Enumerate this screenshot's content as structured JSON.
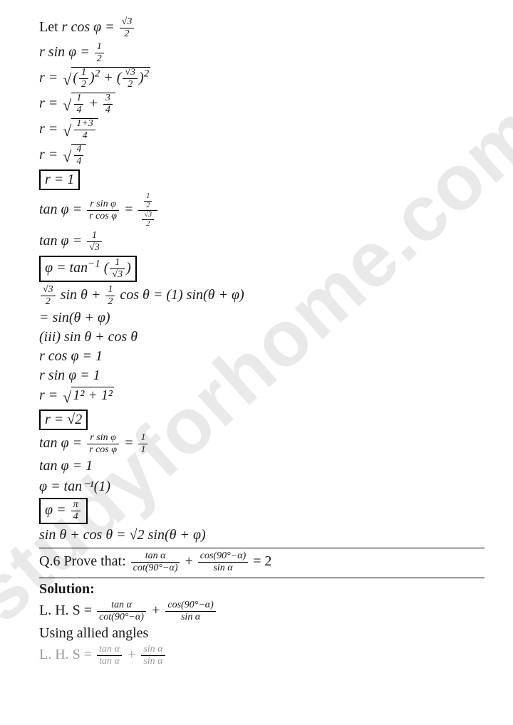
{
  "watermark": "studyforhome.com",
  "lines": {
    "l1_a": "Let ",
    "l1_b": "r cos φ = ",
    "l1_frac_n": "√3",
    "l1_frac_d": "2",
    "l2": "r sin φ = ",
    "l2_frac_n": "1",
    "l2_frac_d": "2",
    "l3": "r = ",
    "l3_f1n": "1",
    "l3_f1d": "2",
    "l3_f2n": "√3",
    "l3_f2d": "2",
    "l4": "r = ",
    "l4_f1n": "1",
    "l4_f1d": "4",
    "l4_plus": " + ",
    "l4_f2n": "3",
    "l4_f2d": "4",
    "l5": "r = ",
    "l5_fn": "1+3",
    "l5_fd": "4",
    "l6": "r = ",
    "l6_fn": "4",
    "l6_fd": "4",
    "l7_box": "r = 1",
    "l8": "tan φ = ",
    "l8_f1n": "r sin φ",
    "l8_f1d": "r cos φ",
    "l8_eq": " = ",
    "l8_f2nn": "1",
    "l8_f2nd": "2",
    "l8_f2dn": "√3",
    "l8_f2dd": "2",
    "l9": "tan φ = ",
    "l9_fn": "1",
    "l9_fd": "√3",
    "l10_box_a": "φ = tan",
    "l10_sup": "−1",
    "l10_fn": "1",
    "l10_fd": "√3",
    "l11_f1n": "√3",
    "l11_f1d": "2",
    "l11_a": " sin θ + ",
    "l11_f2n": "1",
    "l11_f2d": "2",
    "l11_b": " cos θ = (1) sin(θ + φ)",
    "l12": "= sin(θ + φ)",
    "l13": "(iii) sin θ + cos θ",
    "l14": "r cos φ = 1",
    "l15": "r sin φ = 1",
    "l16_a": "r = ",
    "l16_rad": "1² + 1²",
    "l17_box": "r = √2",
    "l18": "tan φ = ",
    "l18_f1n": "r sin φ",
    "l18_f1d": "r cos φ",
    "l18_eq": " = ",
    "l18_f2n": "1",
    "l18_f2d": "1",
    "l19": "tan φ = 1",
    "l20": "φ = tan⁻¹(1)",
    "l21_box_a": "φ = ",
    "l21_fn": "π",
    "l21_fd": "4",
    "l22": "sin θ + cos θ = √2 sin(θ + φ)",
    "q6_a": "Q.6 Prove that: ",
    "q6_f1n": "tan α",
    "q6_f1d": "cot(90°−α)",
    "q6_plus": " + ",
    "q6_f2n": "cos(90°−α)",
    "q6_f2d": "sin α",
    "q6_eq": " = 2",
    "sol": "Solution:",
    "lhs_a": "L. H. S = ",
    "lhs_f1n": "tan α",
    "lhs_f1d": "cot(90°−α)",
    "lhs_plus": " + ",
    "lhs_f2n": "cos(90°−α)",
    "lhs_f2d": "sin α",
    "allied": "Using allied angles",
    "lhs2_a": "L. H. S = ",
    "lhs2_f1n": "tan α",
    "lhs2_f1d": "tan α",
    "lhs2_plus": " + ",
    "lhs2_f2n": "sin α",
    "lhs2_f2d": "sin α"
  },
  "colors": {
    "text": "#1a1a1a",
    "watermark": "#e9e9e9",
    "bg": "#ffffff"
  }
}
